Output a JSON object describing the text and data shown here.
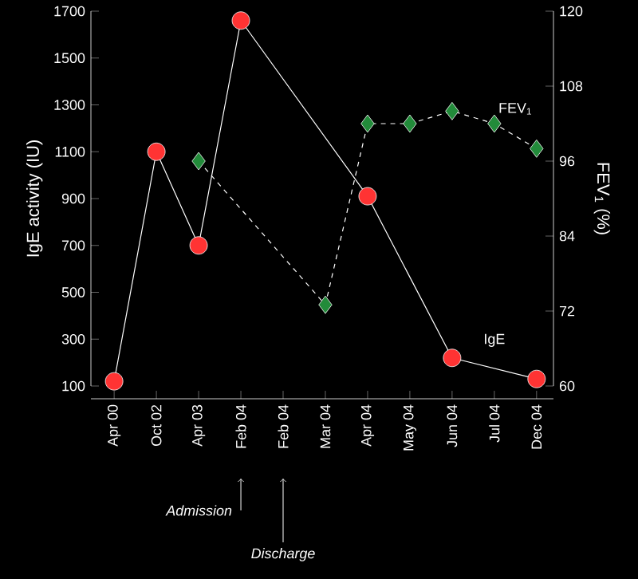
{
  "chart_data": {
    "type": "line",
    "ylabel": "IgE activity (IU)",
    "y2label": "FEV$_{1}$ (%)",
    "categories": [
      "Apr 00",
      "Oct 02",
      "Apr 03",
      "Feb 04",
      "Feb 04",
      "Mar 04",
      "Apr 04",
      "May 04",
      "Jun 04",
      "Jul 04",
      "Dec 04"
    ],
    "series": [
      {
        "name": "IgE",
        "color": "#ff3333",
        "values": [
          120,
          1100,
          700,
          1660,
          null,
          null,
          910,
          null,
          220,
          null,
          130
        ],
        "marker": "circle",
        "line_style": "solid",
        "axis": "y"
      },
      {
        "name": "FEV$_{1}$",
        "color": "#228b3a",
        "values": [
          null,
          null,
          96,
          null,
          null,
          73,
          102,
          102,
          104,
          102,
          98
        ],
        "marker": "diamond",
        "line_style": "dashed",
        "axis": "y2"
      }
    ],
    "ylim": [
      100,
      1700
    ],
    "yticks": [
      100,
      300,
      500,
      700,
      900,
      1100,
      1300,
      1500,
      1700
    ],
    "y2lim": [
      60,
      120
    ],
    "y2ticks": [
      60,
      72,
      84,
      96,
      108,
      120
    ],
    "annotations": [
      "Admission",
      "Discharge"
    ],
    "grid": false
  }
}
